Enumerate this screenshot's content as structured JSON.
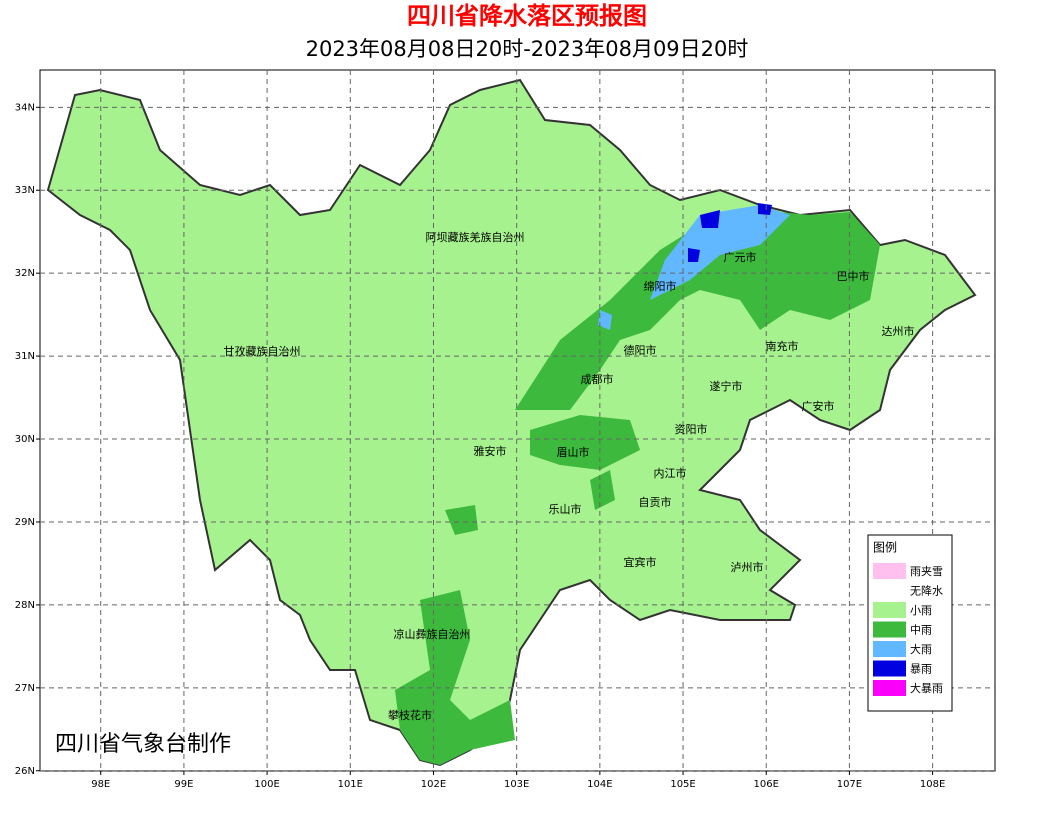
{
  "map": {
    "title": "四川省降水落区预报图",
    "subtitle": "2023年08月08日20时-2023年08月09日20时",
    "credit": "四川省气象台制作",
    "xticks": [
      {
        "value": 98,
        "label": "98E"
      },
      {
        "value": 99,
        "label": "99E"
      },
      {
        "value": 100,
        "label": "100E"
      },
      {
        "value": 101,
        "label": "101E"
      },
      {
        "value": 102,
        "label": "102E"
      },
      {
        "value": 103,
        "label": "103E"
      },
      {
        "value": 104,
        "label": "104E"
      },
      {
        "value": 105,
        "label": "105E"
      },
      {
        "value": 106,
        "label": "106E"
      },
      {
        "value": 107,
        "label": "107E"
      },
      {
        "value": 108,
        "label": "108E"
      }
    ],
    "yticks": [
      {
        "value": 26,
        "label": "26N"
      },
      {
        "value": 27,
        "label": "27N"
      },
      {
        "value": 28,
        "label": "28N"
      },
      {
        "value": 29,
        "label": "29N"
      },
      {
        "value": 30,
        "label": "30N"
      },
      {
        "value": 31,
        "label": "31N"
      },
      {
        "value": 32,
        "label": "32N"
      },
      {
        "value": 33,
        "label": "33N"
      },
      {
        "value": 34,
        "label": "34N"
      }
    ],
    "xlim": [
      97.27,
      108.75
    ],
    "ylim": [
      25.997,
      34.45
    ],
    "cities": [
      "阿坝藏族羌族自治州",
      "甘孜藏族自治州",
      "广元市",
      "巴中市",
      "绵阳市",
      "达州市",
      "德阳市",
      "南充市",
      "成都市",
      "遂宁市",
      "广安市",
      "资阳市",
      "雅安市",
      "眉山市",
      "内江市",
      "自贡市",
      "乐山市",
      "宜宾市",
      "泸州市",
      "凉山彝族自治州",
      "攀枝花市"
    ],
    "legend": {
      "title": "图例",
      "items": [
        {
          "name": "雨夹雪",
          "color": "#ffc0f0"
        },
        {
          "name": "无降水",
          "color": "#ffffff"
        },
        {
          "name": "小雨",
          "color": "#a6f28f"
        },
        {
          "name": "中雨",
          "color": "#3dba3d"
        },
        {
          "name": "大雨",
          "color": "#61b8ff"
        },
        {
          "name": "暴雨",
          "color": "#0000e1"
        },
        {
          "name": "大暴雨",
          "color": "#fa00fa"
        }
      ]
    }
  }
}
